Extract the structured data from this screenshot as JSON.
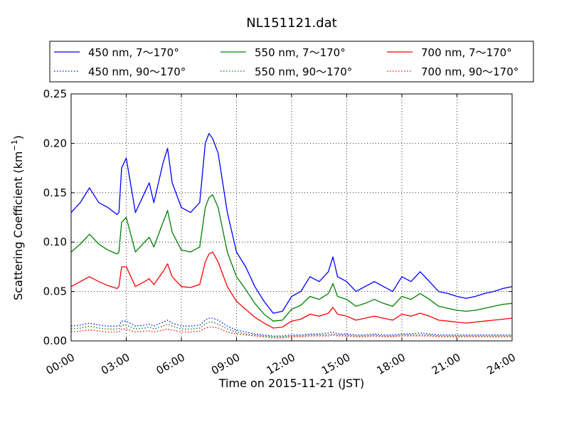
{
  "chart_data": {
    "type": "line",
    "title": "NL151121.dat",
    "xlabel": "Time on 2015-11-21 (JST)",
    "ylabel_main": "Scattering Coefficient (km",
    "ylabel_sup": "−1",
    "ylabel_end": ")",
    "xlim": [
      "00:00",
      "24:00"
    ],
    "ylim": [
      0.0,
      0.25
    ],
    "grid": true,
    "legend_placement": "top (above plot)",
    "x_tick_labels": [
      "00:00",
      "03:00",
      "06:00",
      "09:00",
      "12:00",
      "15:00",
      "18:00",
      "21:00",
      "24:00"
    ],
    "y_tick_values": [
      0.0,
      0.05,
      0.1,
      0.15,
      0.2,
      0.25
    ],
    "y_tick_labels": [
      "0.00",
      "0.05",
      "0.10",
      "0.15",
      "0.20",
      "0.25"
    ],
    "x_hours": [
      0,
      0.5,
      1,
      1.5,
      2,
      2.5,
      2.6,
      2.75,
      3,
      3.5,
      4,
      4.25,
      4.5,
      5,
      5.25,
      5.5,
      6,
      6.5,
      7,
      7.3,
      7.5,
      7.7,
      8,
      8.5,
      9,
      9.5,
      10,
      10.5,
      11,
      11.5,
      12,
      12.5,
      13,
      13.5,
      14,
      14.25,
      14.5,
      15,
      15.5,
      16,
      16.5,
      17,
      17.5,
      18,
      18.5,
      19,
      19.5,
      20,
      20.5,
      21,
      21.5,
      22,
      22.5,
      23,
      23.5,
      24
    ],
    "series": [
      {
        "name": "450 nm, 7～170°",
        "color": "#0000ff",
        "style": "solid",
        "values": [
          0.13,
          0.14,
          0.155,
          0.14,
          0.135,
          0.128,
          0.13,
          0.175,
          0.185,
          0.13,
          0.15,
          0.16,
          0.14,
          0.18,
          0.195,
          0.16,
          0.135,
          0.13,
          0.14,
          0.2,
          0.21,
          0.205,
          0.19,
          0.13,
          0.09,
          0.075,
          0.055,
          0.04,
          0.028,
          0.03,
          0.045,
          0.05,
          0.065,
          0.06,
          0.07,
          0.085,
          0.065,
          0.06,
          0.05,
          0.055,
          0.06,
          0.055,
          0.05,
          0.065,
          0.06,
          0.07,
          0.06,
          0.05,
          0.048,
          0.045,
          0.043,
          0.045,
          0.048,
          0.05,
          0.053,
          0.055
        ]
      },
      {
        "name": "550 nm, 7～170°",
        "color": "#008000",
        "style": "solid",
        "values": [
          0.09,
          0.098,
          0.108,
          0.098,
          0.092,
          0.088,
          0.09,
          0.12,
          0.125,
          0.09,
          0.1,
          0.105,
          0.095,
          0.12,
          0.132,
          0.11,
          0.092,
          0.09,
          0.095,
          0.135,
          0.145,
          0.148,
          0.135,
          0.09,
          0.065,
          0.052,
          0.038,
          0.027,
          0.02,
          0.021,
          0.032,
          0.036,
          0.045,
          0.042,
          0.048,
          0.058,
          0.045,
          0.042,
          0.035,
          0.038,
          0.042,
          0.038,
          0.035,
          0.045,
          0.042,
          0.048,
          0.042,
          0.035,
          0.033,
          0.031,
          0.03,
          0.031,
          0.033,
          0.035,
          0.037,
          0.038
        ]
      },
      {
        "name": "700 nm, 7～170°",
        "color": "#ff0000",
        "style": "solid",
        "values": [
          0.055,
          0.06,
          0.065,
          0.06,
          0.056,
          0.053,
          0.055,
          0.075,
          0.075,
          0.055,
          0.06,
          0.063,
          0.057,
          0.07,
          0.078,
          0.065,
          0.055,
          0.054,
          0.057,
          0.08,
          0.088,
          0.09,
          0.08,
          0.055,
          0.04,
          0.032,
          0.024,
          0.018,
          0.013,
          0.014,
          0.02,
          0.022,
          0.027,
          0.025,
          0.028,
          0.034,
          0.027,
          0.025,
          0.021,
          0.023,
          0.025,
          0.023,
          0.021,
          0.027,
          0.025,
          0.028,
          0.025,
          0.021,
          0.02,
          0.019,
          0.018,
          0.019,
          0.02,
          0.021,
          0.022,
          0.023
        ]
      },
      {
        "name": "450 nm, 90～170°",
        "color": "#0000ff",
        "style": "dotted",
        "values": [
          0.015,
          0.016,
          0.018,
          0.016,
          0.015,
          0.015,
          0.015,
          0.02,
          0.02,
          0.015,
          0.016,
          0.017,
          0.015,
          0.019,
          0.021,
          0.018,
          0.015,
          0.015,
          0.016,
          0.021,
          0.023,
          0.023,
          0.021,
          0.015,
          0.011,
          0.009,
          0.007,
          0.006,
          0.005,
          0.005,
          0.006,
          0.006,
          0.007,
          0.007,
          0.008,
          0.009,
          0.007,
          0.007,
          0.006,
          0.006,
          0.007,
          0.006,
          0.006,
          0.007,
          0.007,
          0.008,
          0.007,
          0.006,
          0.006,
          0.006,
          0.006,
          0.006,
          0.006,
          0.006,
          0.006,
          0.006
        ]
      },
      {
        "name": "550 nm, 90～170°",
        "color": "#008000",
        "style": "dotted",
        "values": [
          0.012,
          0.013,
          0.015,
          0.013,
          0.012,
          0.012,
          0.012,
          0.016,
          0.016,
          0.012,
          0.013,
          0.014,
          0.012,
          0.015,
          0.017,
          0.015,
          0.012,
          0.012,
          0.013,
          0.017,
          0.019,
          0.019,
          0.017,
          0.012,
          0.009,
          0.007,
          0.006,
          0.005,
          0.004,
          0.004,
          0.005,
          0.005,
          0.006,
          0.006,
          0.006,
          0.007,
          0.006,
          0.006,
          0.005,
          0.005,
          0.006,
          0.005,
          0.005,
          0.006,
          0.006,
          0.006,
          0.006,
          0.005,
          0.005,
          0.005,
          0.005,
          0.005,
          0.005,
          0.005,
          0.005,
          0.005
        ]
      },
      {
        "name": "700 nm, 90～170°",
        "color": "#ff0000",
        "style": "dotted",
        "values": [
          0.009,
          0.01,
          0.011,
          0.01,
          0.009,
          0.009,
          0.009,
          0.012,
          0.012,
          0.009,
          0.01,
          0.01,
          0.009,
          0.011,
          0.012,
          0.011,
          0.009,
          0.009,
          0.01,
          0.013,
          0.014,
          0.014,
          0.013,
          0.009,
          0.007,
          0.006,
          0.005,
          0.004,
          0.003,
          0.003,
          0.004,
          0.004,
          0.005,
          0.005,
          0.005,
          0.006,
          0.005,
          0.005,
          0.004,
          0.004,
          0.005,
          0.004,
          0.004,
          0.005,
          0.005,
          0.005,
          0.005,
          0.004,
          0.004,
          0.004,
          0.004,
          0.004,
          0.004,
          0.004,
          0.004,
          0.004
        ]
      }
    ]
  }
}
